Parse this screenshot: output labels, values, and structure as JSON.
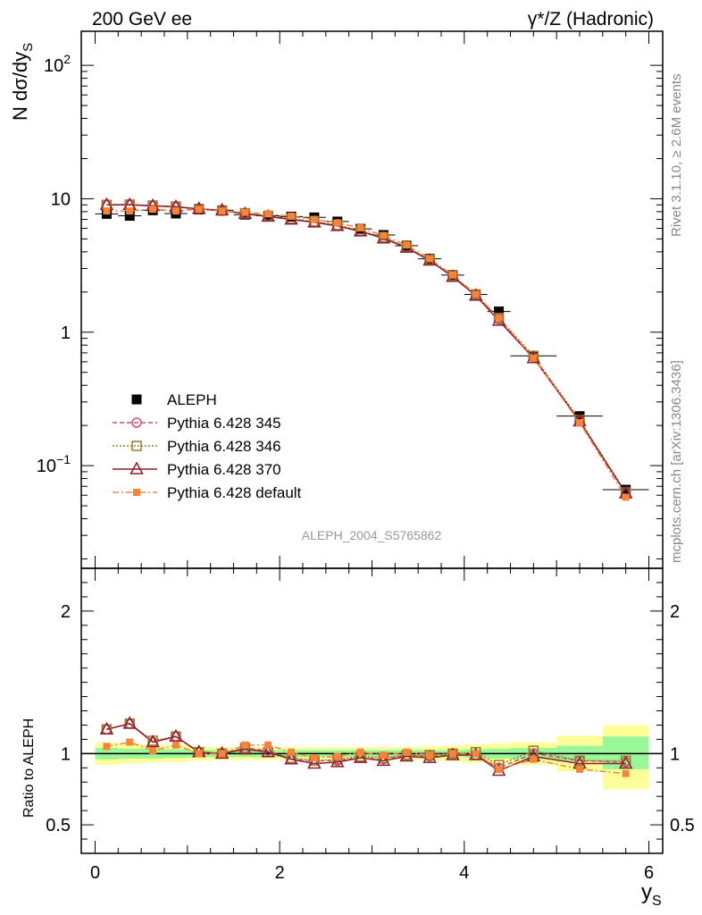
{
  "header": {
    "left_title": "200 GeV ee",
    "right_title": "γ*/Z (Hadronic)",
    "side_label_top": "Rivet 3.1.10, ≥ 2.6M events",
    "side_label_bottom": "mcplots.cern.ch [arXiv:1306.3436]",
    "analysis_id": "ALEPH_2004_S5765862"
  },
  "colors": {
    "data": "#000000",
    "p345": "#c8506e",
    "p346": "#9c7a2e",
    "p370": "#8c1c2e",
    "pdefault": "#f5853a",
    "band_inner": "#99f799",
    "band_outer": "#ffff99"
  },
  "chart_data": [
    {
      "type": "line",
      "panel": "main",
      "ylabel": "N dσ/dy_S",
      "yscale": "log",
      "ylim": [
        0.017,
        180
      ],
      "xlim": [
        -0.15,
        6.15
      ],
      "yticks": [
        {
          "value": 0.1,
          "base": "10",
          "exp": "−1",
          "plain": ""
        },
        {
          "value": 1,
          "base": "",
          "exp": "",
          "plain": "1"
        },
        {
          "value": 10,
          "base": "",
          "exp": "",
          "plain": "10"
        },
        {
          "value": 100,
          "base": "10",
          "exp": "2",
          "plain": ""
        }
      ],
      "x_bins": [
        [
          0.0,
          0.25
        ],
        [
          0.25,
          0.5
        ],
        [
          0.5,
          0.75
        ],
        [
          0.75,
          1.0
        ],
        [
          1.0,
          1.25
        ],
        [
          1.25,
          1.5
        ],
        [
          1.5,
          1.75
        ],
        [
          1.75,
          2.0
        ],
        [
          2.0,
          2.25
        ],
        [
          2.25,
          2.5
        ],
        [
          2.5,
          2.75
        ],
        [
          2.75,
          3.0
        ],
        [
          3.0,
          3.25
        ],
        [
          3.25,
          3.5
        ],
        [
          3.5,
          3.75
        ],
        [
          3.75,
          4.0
        ],
        [
          4.0,
          4.25
        ],
        [
          4.25,
          4.5
        ],
        [
          4.5,
          5.0
        ],
        [
          5.0,
          5.5
        ],
        [
          5.5,
          6.0
        ]
      ],
      "x": [
        0.125,
        0.375,
        0.625,
        0.875,
        1.125,
        1.375,
        1.625,
        1.875,
        2.125,
        2.375,
        2.625,
        2.875,
        3.125,
        3.375,
        3.625,
        3.875,
        4.125,
        4.375,
        4.75,
        5.25,
        5.75
      ],
      "legend": [
        "ALEPH",
        "Pythia 6.428 345",
        "Pythia 6.428 346",
        "Pythia 6.428 370",
        "Pythia 6.428 default"
      ],
      "series": [
        {
          "name": "ALEPH",
          "key": "data",
          "values": [
            7.7,
            7.45,
            8.2,
            7.75,
            8.3,
            8.2,
            7.6,
            7.45,
            7.35,
            7.25,
            6.75,
            5.95,
            5.35,
            4.45,
            3.55,
            2.68,
            1.92,
            1.43,
            0.665,
            0.235,
            0.066
          ]
        },
        {
          "name": "Pythia 6.428 345",
          "key": "p345",
          "values": [
            9.0,
            9.05,
            8.85,
            8.7,
            8.35,
            8.1,
            7.75,
            7.4,
            7.0,
            6.7,
            6.3,
            5.7,
            5.1,
            4.3,
            3.45,
            2.62,
            1.88,
            1.25,
            0.65,
            0.215,
            0.062
          ]
        },
        {
          "name": "Pythia 6.428 346",
          "key": "p346",
          "values": [
            9.0,
            9.05,
            8.9,
            8.75,
            8.4,
            8.15,
            7.8,
            7.45,
            7.1,
            6.75,
            6.35,
            5.75,
            5.15,
            4.35,
            3.5,
            2.65,
            1.92,
            1.28,
            0.665,
            0.22,
            0.063
          ]
        },
        {
          "name": "Pythia 6.428 370",
          "key": "p370",
          "values": [
            9.0,
            9.0,
            8.85,
            8.7,
            8.4,
            8.2,
            7.7,
            7.35,
            7.0,
            6.65,
            6.25,
            5.7,
            5.05,
            4.3,
            3.45,
            2.6,
            1.88,
            1.22,
            0.64,
            0.215,
            0.062
          ]
        },
        {
          "name": "Pythia 6.428 default",
          "key": "pdefault",
          "values": [
            8.1,
            8.1,
            8.35,
            8.1,
            8.35,
            8.1,
            7.9,
            7.7,
            7.4,
            7.0,
            6.6,
            6.05,
            5.3,
            4.5,
            3.55,
            2.68,
            1.92,
            1.28,
            0.64,
            0.21,
            0.058
          ]
        }
      ]
    },
    {
      "type": "line",
      "panel": "ratio",
      "ylabel": "Ratio to ALEPH",
      "xlabel": "y_S",
      "ylim": [
        0.3,
        2.3
      ],
      "xlim": [
        -0.15,
        6.15
      ],
      "yticks": [
        0.5,
        1,
        2
      ],
      "ytick_labels": [
        "0.5",
        "1",
        "2"
      ],
      "xticks": [
        0,
        2,
        4,
        6
      ],
      "xtick_labels": [
        "0",
        "2",
        "4",
        "6"
      ],
      "x_bins": [
        [
          0.0,
          0.25
        ],
        [
          0.25,
          0.5
        ],
        [
          0.5,
          0.75
        ],
        [
          0.75,
          1.0
        ],
        [
          1.0,
          1.25
        ],
        [
          1.25,
          1.5
        ],
        [
          1.5,
          1.75
        ],
        [
          1.75,
          2.0
        ],
        [
          2.0,
          2.25
        ],
        [
          2.25,
          2.5
        ],
        [
          2.5,
          2.75
        ],
        [
          2.75,
          3.0
        ],
        [
          3.0,
          3.25
        ],
        [
          3.25,
          3.5
        ],
        [
          3.5,
          3.75
        ],
        [
          3.75,
          4.0
        ],
        [
          4.0,
          4.25
        ],
        [
          4.25,
          4.5
        ],
        [
          4.5,
          5.0
        ],
        [
          5.0,
          5.5
        ],
        [
          5.5,
          6.0
        ]
      ],
      "x": [
        0.125,
        0.375,
        0.625,
        0.875,
        1.125,
        1.375,
        1.625,
        1.875,
        2.125,
        2.375,
        2.625,
        2.875,
        3.125,
        3.375,
        3.625,
        3.875,
        4.125,
        4.375,
        4.75,
        5.25,
        5.75
      ],
      "band_inner": [
        [
          0.96,
          1.04
        ],
        [
          0.965,
          1.035
        ],
        [
          0.965,
          1.035
        ],
        [
          0.97,
          1.03
        ],
        [
          0.975,
          1.025
        ],
        [
          0.975,
          1.025
        ],
        [
          0.975,
          1.025
        ],
        [
          0.975,
          1.025
        ],
        [
          0.975,
          1.025
        ],
        [
          0.975,
          1.025
        ],
        [
          0.975,
          1.025
        ],
        [
          0.975,
          1.025
        ],
        [
          0.975,
          1.025
        ],
        [
          0.975,
          1.025
        ],
        [
          0.975,
          1.025
        ],
        [
          0.975,
          1.025
        ],
        [
          0.97,
          1.03
        ],
        [
          0.965,
          1.035
        ],
        [
          0.96,
          1.04
        ],
        [
          0.945,
          1.055
        ],
        [
          0.89,
          1.12
        ]
      ],
      "band_outer": [
        [
          0.92,
          1.08
        ],
        [
          0.93,
          1.07
        ],
        [
          0.935,
          1.065
        ],
        [
          0.94,
          1.06
        ],
        [
          0.95,
          1.05
        ],
        [
          0.955,
          1.045
        ],
        [
          0.955,
          1.045
        ],
        [
          0.955,
          1.045
        ],
        [
          0.955,
          1.045
        ],
        [
          0.955,
          1.045
        ],
        [
          0.955,
          1.045
        ],
        [
          0.955,
          1.045
        ],
        [
          0.955,
          1.045
        ],
        [
          0.955,
          1.045
        ],
        [
          0.95,
          1.05
        ],
        [
          0.945,
          1.055
        ],
        [
          0.935,
          1.065
        ],
        [
          0.93,
          1.07
        ],
        [
          0.92,
          1.08
        ],
        [
          0.875,
          1.125
        ],
        [
          0.75,
          1.2
        ]
      ],
      "series": [
        {
          "name": "Pythia 6.428 345",
          "key": "p345",
          "values": [
            1.17,
            1.21,
            1.08,
            1.12,
            1.01,
            1.0,
            1.04,
            1.02,
            0.96,
            0.95,
            0.95,
            0.97,
            0.96,
            0.99,
            0.98,
            1.0,
            0.99,
            0.9,
            1.0,
            0.95,
            0.94
          ]
        },
        {
          "name": "Pythia 6.428 346",
          "key": "p346",
          "values": [
            1.17,
            1.21,
            1.09,
            1.12,
            1.01,
            1.0,
            1.04,
            1.01,
            0.97,
            0.95,
            0.96,
            0.98,
            0.97,
            0.99,
            0.99,
            1.0,
            1.01,
            0.92,
            1.02,
            0.95,
            0.95
          ]
        },
        {
          "name": "Pythia 6.428 370",
          "key": "p370",
          "values": [
            1.17,
            1.21,
            1.08,
            1.12,
            1.01,
            1.0,
            1.03,
            1.01,
            0.96,
            0.93,
            0.94,
            0.97,
            0.95,
            0.98,
            0.97,
            0.99,
            0.99,
            0.88,
            0.98,
            0.93,
            0.93
          ]
        },
        {
          "name": "Pythia 6.428 default",
          "key": "pdefault",
          "values": [
            1.05,
            1.08,
            1.02,
            1.06,
            1.0,
            1.0,
            1.06,
            1.06,
            1.01,
            0.97,
            0.98,
            1.01,
            0.99,
            1.01,
            0.99,
            1.0,
            1.0,
            0.89,
            0.96,
            0.89,
            0.86
          ]
        }
      ]
    }
  ]
}
